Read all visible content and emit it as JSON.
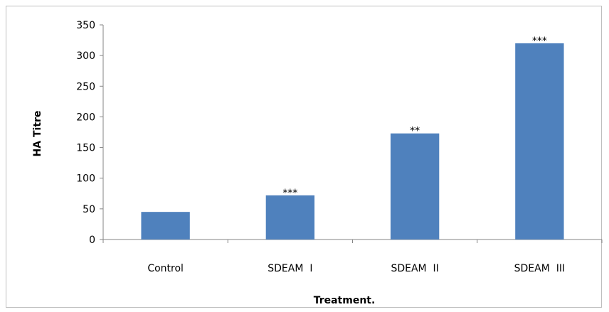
{
  "chart_data": {
    "type": "bar",
    "title": "",
    "xlabel": "Treatment.",
    "ylabel": "HA Titre",
    "categories": [
      "Control",
      "SDEAM  I",
      "SDEAM  II",
      "SDEAM  III"
    ],
    "series": [
      {
        "values": [
          45,
          72,
          173,
          320
        ],
        "color": "#4f81bd"
      }
    ],
    "data_labels": [
      "",
      "***",
      "**",
      "***"
    ],
    "ylim": [
      0,
      350
    ],
    "yticks": [
      0,
      50,
      100,
      150,
      200,
      250,
      300,
      350
    ],
    "ytick_labels": [
      "0",
      "50",
      "100",
      "150",
      "200",
      "250",
      "300",
      "350"
    ],
    "grid": false,
    "legend": "none"
  }
}
